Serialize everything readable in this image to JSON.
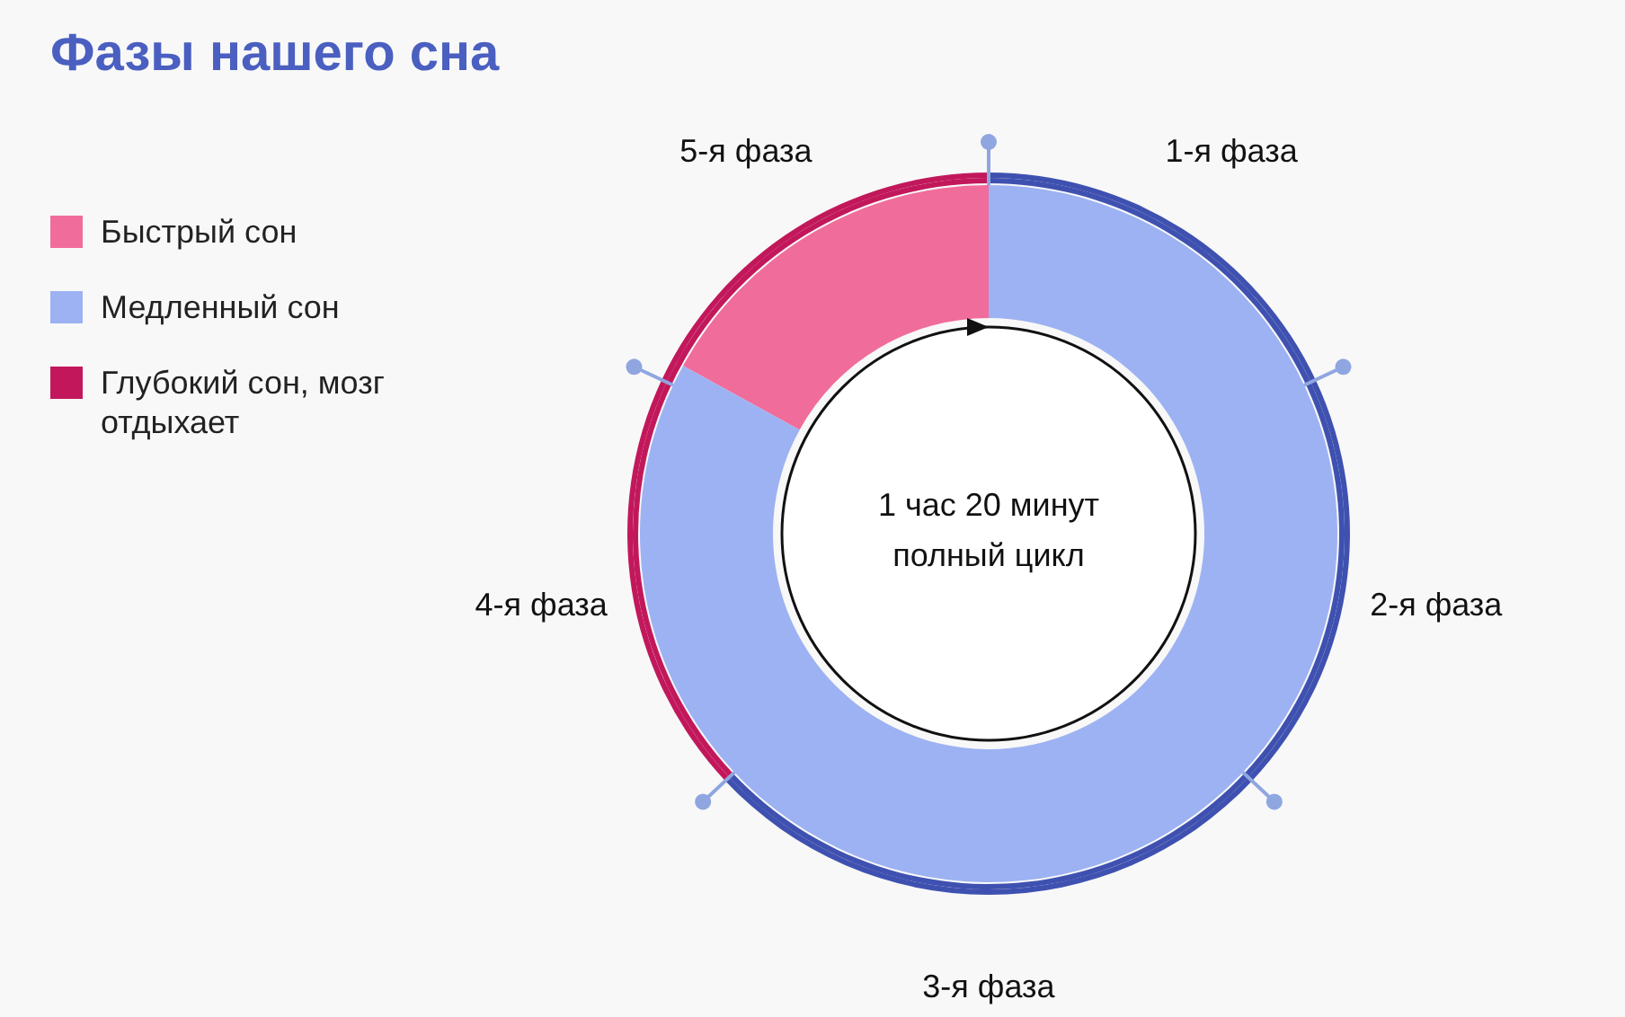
{
  "chart_data": [
    {
      "type": "donut",
      "title": "Фазы нашего сна",
      "legend": "left",
      "categories": [
        "Быстрый сон",
        "Медленный сон"
      ],
      "values": [
        17,
        83
      ],
      "colors": [
        "#f06c9b",
        "#9db2f2"
      ],
      "annotations": [
        "1 час 20 минут\nполный цикл"
      ]
    },
    {
      "type": "donut",
      "legend": "left",
      "categories": [
        "Глубокий сон, мозг отдыхает",
        null
      ],
      "values": [
        37,
        63
      ],
      "colors": [
        "#c2185b",
        "#3f51b0"
      ]
    },
    {
      "type": "donut",
      "categories": [
        "1-я фаза",
        "2-я фаза",
        "3-я фаза",
        "4-я фаза",
        "5-я фаза"
      ],
      "values": [
        18,
        19,
        26,
        19,
        18
      ],
      "colors": [
        "#3f51b0",
        "#3f51b0",
        "#3f51b0",
        "#c2185b",
        "#c2185b"
      ]
    }
  ]
}
